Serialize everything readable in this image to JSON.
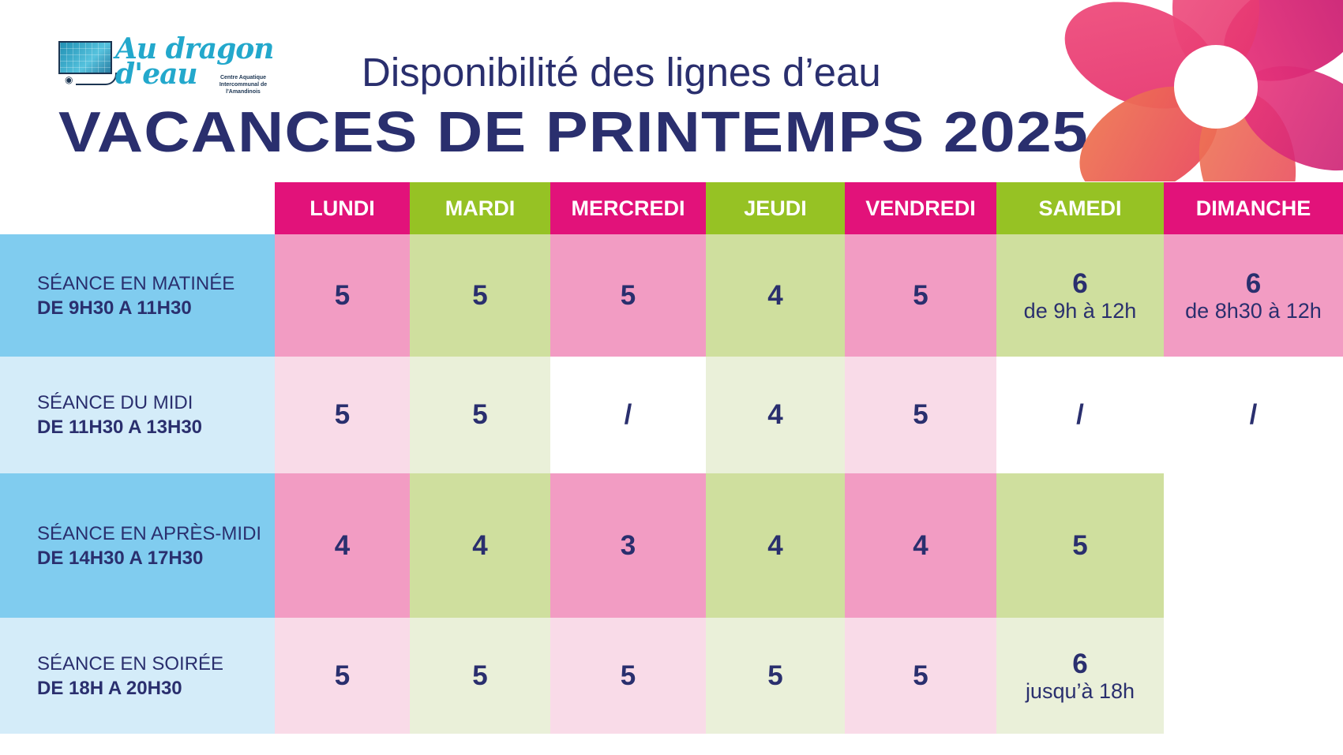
{
  "logo": {
    "name": "Au dragon d'eau",
    "subtitle": "Centre Aquatique Intercommunal de l'Amandinois"
  },
  "subtitle": "Disponibilité des lignes d’eau",
  "title": "VACANCES DE PRINTEMPS 2025",
  "colors": {
    "header_pink": "#e2127a",
    "header_green": "#96c224",
    "navy_text": "#2a2f6e",
    "label_blue": "#80ccef",
    "label_blue_light": "#d4ecf9"
  },
  "days": [
    "LUNDI",
    "MARDI",
    "MERCREDI",
    "JEUDI",
    "VENDREDI",
    "SAMEDI",
    "DIMANCHE"
  ],
  "sessions": [
    {
      "name": "SÉANCE EN MATINÉE",
      "time": "DE 9H30 A 11H30",
      "cells": [
        {
          "value": "5"
        },
        {
          "value": "5"
        },
        {
          "value": "5"
        },
        {
          "value": "4"
        },
        {
          "value": "5"
        },
        {
          "value": "6",
          "note": "de 9h à 12h"
        },
        {
          "value": "6",
          "note": "de 8h30 à 12h"
        }
      ]
    },
    {
      "name": "SÉANCE DU MIDI",
      "time": "DE 11H30 A 13H30",
      "cells": [
        {
          "value": "5"
        },
        {
          "value": "5"
        },
        {
          "value": "/"
        },
        {
          "value": "4"
        },
        {
          "value": "5"
        },
        {
          "value": "/"
        },
        {
          "value": "/"
        }
      ]
    },
    {
      "name": "SÉANCE EN APRÈS-MIDI",
      "time": "DE 14H30 A 17H30",
      "cells": [
        {
          "value": "4"
        },
        {
          "value": "4"
        },
        {
          "value": "3"
        },
        {
          "value": "4"
        },
        {
          "value": "4"
        },
        {
          "value": "5"
        },
        {
          "value": ""
        }
      ]
    },
    {
      "name": "SÉANCE EN SOIRÉE",
      "time": "DE 18H A 20H30",
      "cells": [
        {
          "value": "5"
        },
        {
          "value": "5"
        },
        {
          "value": "5"
        },
        {
          "value": "5"
        },
        {
          "value": "5"
        },
        {
          "value": "6",
          "note": "jusqu’à 18h"
        },
        {
          "value": ""
        }
      ]
    }
  ]
}
